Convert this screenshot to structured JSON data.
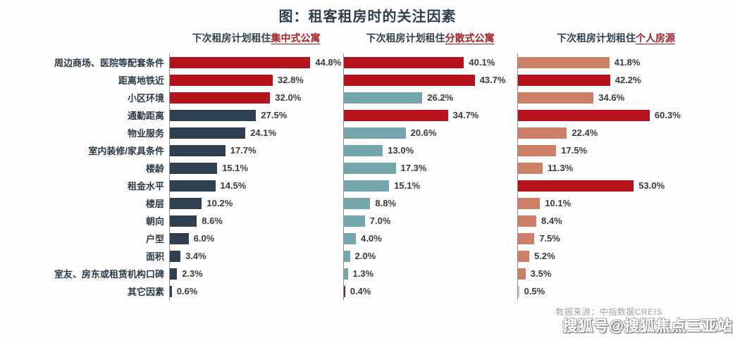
{
  "title": "图：租客租房时的关注因素",
  "panels": [
    {
      "header_prefix": "下次租房计划租住",
      "header_highlight": "集中式公寓"
    },
    {
      "header_prefix": "下次租房计划租住",
      "header_highlight": "分散式公寓"
    },
    {
      "header_prefix": "下次租房计划租住",
      "header_highlight": "个人房源"
    }
  ],
  "colors": {
    "red": "#b5121b",
    "navy": "#2e3f50",
    "teal": "#74a7ac",
    "salmon": "#cd8065",
    "darkred": "#8e1f1f",
    "teal_light": "#a5cbc7",
    "title_text": "#2e3f50",
    "highlight_text": "#a81c22"
  },
  "chart_data": {
    "type": "bar",
    "orientation": "horizontal",
    "value_unit": "%",
    "categories": [
      "周边商场、医院等配套条件",
      "距离地铁近",
      "小区环境",
      "通勤距离",
      "物业服务",
      "室内装修/家具条件",
      "楼龄",
      "租金水平",
      "楼层",
      "朝向",
      "户型",
      "面积",
      "室友、房东或租赁机构口碑",
      "其它因素"
    ],
    "series": [
      {
        "name": "集中式公寓",
        "values": [
          44.8,
          32.8,
          32.0,
          27.5,
          24.1,
          17.7,
          15.1,
          14.5,
          10.2,
          8.6,
          6.0,
          3.4,
          2.3,
          0.6
        ],
        "colors": [
          "red",
          "red",
          "red",
          "navy",
          "navy",
          "navy",
          "navy",
          "navy",
          "navy",
          "navy",
          "navy",
          "navy",
          "navy",
          "navy"
        ]
      },
      {
        "name": "分散式公寓",
        "values": [
          40.1,
          43.7,
          26.2,
          34.7,
          20.6,
          13.0,
          17.3,
          15.1,
          8.8,
          7.0,
          4.0,
          2.0,
          1.3,
          0.4
        ],
        "colors": [
          "red",
          "red",
          "teal",
          "red",
          "teal",
          "teal",
          "teal",
          "teal",
          "teal",
          "teal",
          "teal",
          "teal",
          "teal",
          "darkred"
        ]
      },
      {
        "name": "个人房源",
        "values": [
          41.8,
          42.2,
          34.6,
          60.3,
          22.4,
          17.5,
          11.3,
          53.0,
          10.1,
          8.4,
          7.5,
          5.2,
          3.5,
          0.5
        ],
        "colors": [
          "salmon",
          "red",
          "salmon",
          "red",
          "salmon",
          "salmon",
          "salmon",
          "red",
          "salmon",
          "salmon",
          "salmon",
          "salmon",
          "salmon",
          "teal_light"
        ]
      }
    ]
  },
  "footer": {
    "source": "数据来源：中指数据CREIS",
    "watermark": "搜狐号@搜狐焦点三亚站"
  }
}
